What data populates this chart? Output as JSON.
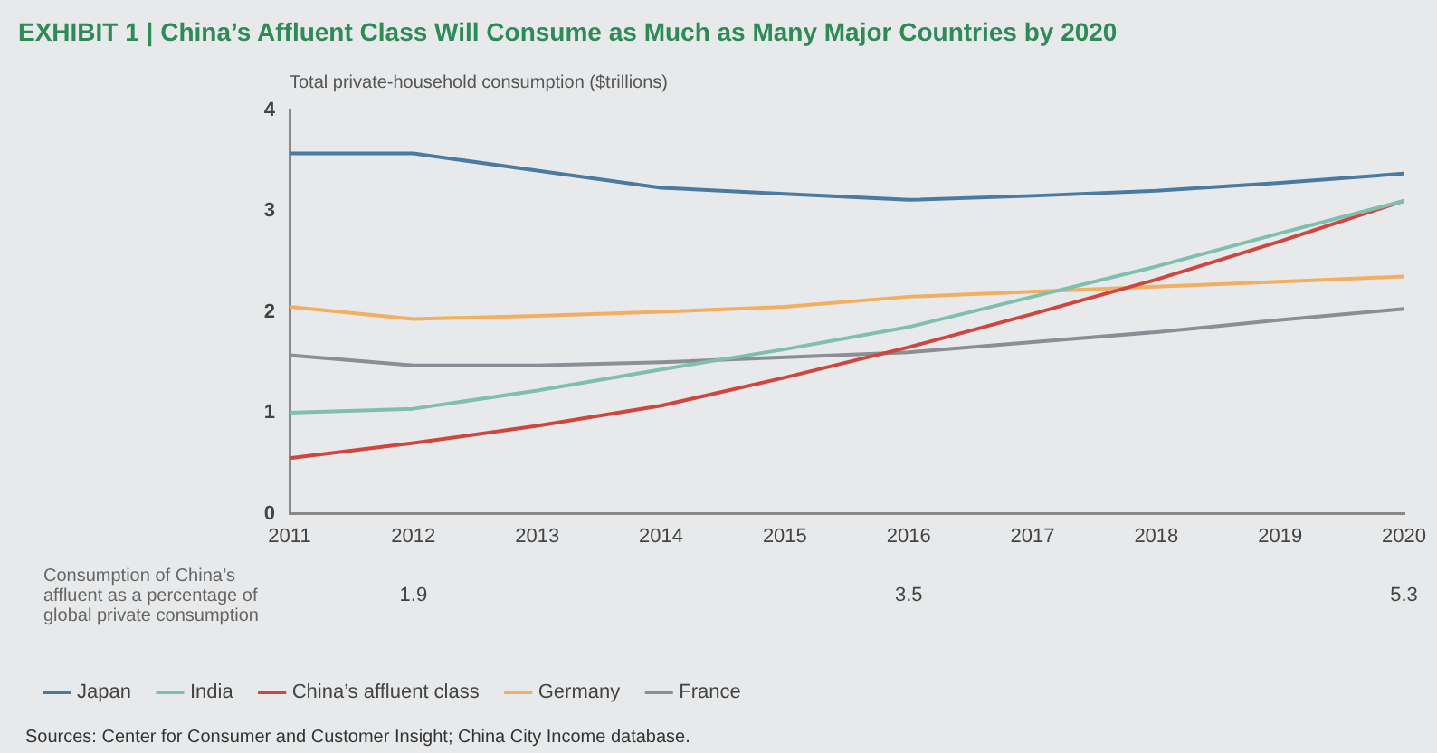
{
  "chart_data": {
    "type": "line",
    "title": "EXHIBIT 1 | China’s Affluent Class Will Consume as Much as Many Major Countries by 2020",
    "ylabel": "Total private-household consumption ($trillions)",
    "categories": [
      "2011",
      "2012",
      "2013",
      "2014",
      "2015",
      "2016",
      "2017",
      "2018",
      "2019",
      "2020"
    ],
    "series": [
      {
        "name": "Japan",
        "color": "#4a7aa0",
        "values": [
          3.57,
          3.57,
          3.4,
          3.23,
          3.17,
          3.11,
          3.15,
          3.2,
          3.28,
          3.37
        ]
      },
      {
        "name": "India",
        "color": "#7fbfb0",
        "values": [
          1.0,
          1.04,
          1.22,
          1.43,
          1.63,
          1.85,
          2.15,
          2.45,
          2.78,
          3.1
        ]
      },
      {
        "name": "China’s affluent class",
        "color": "#d0463f",
        "values": [
          0.55,
          0.7,
          0.87,
          1.07,
          1.35,
          1.65,
          1.98,
          2.32,
          2.7,
          3.1
        ]
      },
      {
        "name": "Germany",
        "color": "#f0b060",
        "values": [
          2.05,
          1.93,
          1.96,
          2.0,
          2.05,
          2.15,
          2.2,
          2.25,
          2.3,
          2.35
        ]
      },
      {
        "name": "France",
        "color": "#8a8f95",
        "values": [
          1.57,
          1.47,
          1.47,
          1.5,
          1.55,
          1.6,
          1.7,
          1.8,
          1.92,
          2.03
        ]
      }
    ],
    "ylim": [
      0,
      4
    ],
    "yticks": [
      0,
      1,
      2,
      3,
      4
    ],
    "grid": false,
    "legend": "bottom",
    "marker": "none",
    "line_style": "solid",
    "annotations": [
      "Consumption of China’s affluent as a percentage of global private consumption",
      "1.9",
      "3.5",
      "5.3",
      "Sources: Center for Consumer and Customer Insight; China City Income database."
    ]
  }
}
